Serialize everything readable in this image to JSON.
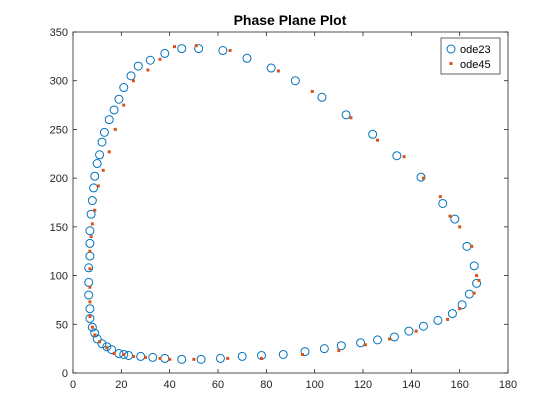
{
  "chart_data": {
    "type": "scatter",
    "title": "Phase Plane Plot",
    "xlabel": "",
    "ylabel": "",
    "xlim": [
      0,
      180
    ],
    "ylim": [
      0,
      350
    ],
    "xticks": [
      0,
      20,
      40,
      60,
      80,
      100,
      120,
      140,
      160,
      180
    ],
    "yticks": [
      0,
      50,
      100,
      150,
      200,
      250,
      300,
      350
    ],
    "grid": false,
    "legend_position": "top-right",
    "series": [
      {
        "name": "ode23",
        "marker": "circle-open",
        "color": "#0072BD",
        "x": [
          52,
          62,
          72,
          82,
          92,
          103,
          113,
          124,
          134,
          144,
          153,
          158,
          163,
          166,
          167,
          164,
          161,
          157,
          151,
          145,
          139,
          133,
          126,
          119,
          111,
          104,
          96,
          87,
          78,
          70,
          61,
          53,
          45,
          38,
          33,
          28,
          23,
          21,
          19,
          16,
          14,
          12,
          10,
          9,
          8,
          7,
          7,
          6.5,
          6.5,
          6.5,
          7,
          7,
          7,
          7.5,
          8,
          8.5,
          9,
          10,
          11,
          12,
          13,
          15,
          17,
          19,
          21,
          24,
          27,
          32,
          38,
          45
        ],
        "y": [
          333,
          331,
          323,
          313,
          300,
          283,
          265,
          245,
          223,
          201,
          174,
          158,
          130,
          110,
          92,
          81,
          70,
          61,
          54,
          48,
          43,
          37,
          34,
          31,
          28,
          25,
          22,
          19,
          18,
          17,
          15,
          14,
          14,
          15,
          16,
          17,
          18,
          19,
          20,
          24,
          27,
          30,
          35,
          41,
          47,
          56,
          66,
          80,
          93,
          108,
          120,
          133,
          146,
          163,
          177,
          190,
          202,
          215,
          224,
          237,
          247,
          260,
          270,
          281,
          293,
          305,
          315,
          321,
          328,
          333
        ]
      },
      {
        "name": "ode45",
        "marker": "dot",
        "color": "#D95319",
        "x": [
          51,
          65,
          85,
          99,
          115,
          126,
          137,
          145,
          152,
          156,
          160,
          165,
          167,
          168,
          166,
          160,
          155,
          142,
          131,
          121,
          110,
          95,
          78,
          64,
          50,
          40,
          36,
          30,
          25,
          21,
          17,
          14,
          11,
          9,
          8,
          7,
          7,
          7,
          7,
          7,
          7.5,
          8,
          9,
          10.5,
          12.5,
          15,
          17.5,
          21,
          25,
          31,
          36,
          42
        ],
        "y": [
          336,
          331,
          310,
          289,
          262,
          239,
          222,
          200,
          181,
          161,
          150,
          130,
          100,
          95,
          82,
          66,
          55,
          43,
          35,
          29,
          23,
          19,
          15,
          15,
          14,
          14,
          15,
          16,
          17,
          19,
          20,
          26,
          32,
          39,
          47,
          58,
          73,
          88,
          107,
          125,
          140,
          153,
          167,
          192,
          208,
          227,
          250,
          275,
          300,
          311,
          322,
          335
        ]
      }
    ]
  }
}
